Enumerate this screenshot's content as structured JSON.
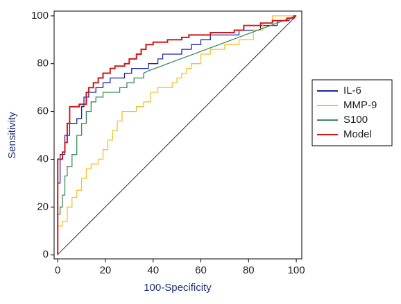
{
  "chart_data": {
    "type": "roc",
    "x_label": "100-Specificity",
    "y_label": "Sensitivity",
    "xlim": [
      -1.5,
      102.3
    ],
    "ylim": [
      -1.7,
      102
    ],
    "xticks": [
      0,
      20,
      40,
      60,
      80,
      100
    ],
    "yticks": [
      0,
      20,
      40,
      60,
      80,
      100
    ],
    "series": [
      {
        "name": "IL-6",
        "color": "#1a22b0",
        "x": [
          0,
          0,
          1,
          1,
          3,
          3,
          5,
          5,
          8,
          8,
          10,
          10,
          11,
          11,
          13,
          13,
          16,
          16,
          19,
          19,
          22,
          22,
          28,
          28,
          31,
          31,
          38,
          38,
          42,
          42,
          44,
          44,
          52,
          52,
          56,
          56,
          60,
          60,
          64,
          64,
          76,
          76,
          85,
          85,
          92,
          92,
          97,
          97,
          100
        ],
        "values": [
          0,
          30,
          30,
          42,
          42,
          50,
          50,
          55,
          55,
          57,
          57,
          62,
          62,
          66,
          66,
          68,
          68,
          70,
          70,
          72,
          72,
          74,
          74,
          76,
          76,
          78,
          78,
          80,
          80,
          82,
          82,
          84,
          84,
          86,
          86,
          88,
          88,
          90,
          90,
          92,
          92,
          94,
          94,
          96,
          96,
          98,
          98,
          99,
          100
        ]
      },
      {
        "name": "MMP-9",
        "color": "#f2c12e",
        "x": [
          0,
          0,
          2,
          2,
          4,
          4,
          6,
          6,
          8,
          8,
          10,
          10,
          12,
          12,
          14,
          14,
          17,
          17,
          19,
          19,
          21,
          21,
          23,
          23,
          25,
          25,
          27,
          27,
          33,
          33,
          36,
          36,
          39,
          39,
          42,
          42,
          48,
          48,
          50,
          50,
          52,
          52,
          54,
          54,
          56,
          56,
          60,
          60,
          64,
          64,
          70,
          70,
          76,
          76,
          82,
          82,
          86,
          86,
          90,
          90,
          100
        ],
        "values": [
          0,
          12,
          12,
          14,
          14,
          20,
          20,
          24,
          24,
          27,
          27,
          32,
          32,
          36,
          36,
          38,
          38,
          40,
          40,
          44,
          44,
          48,
          48,
          52,
          52,
          56,
          56,
          60,
          60,
          62,
          62,
          64,
          64,
          68,
          68,
          70,
          70,
          72,
          72,
          74,
          74,
          76,
          76,
          78,
          78,
          80,
          80,
          84,
          84,
          86,
          86,
          88,
          88,
          90,
          90,
          94,
          94,
          97,
          97,
          100,
          100
        ]
      },
      {
        "name": "S100",
        "color": "#3a8a5c",
        "x": [
          0,
          0,
          1,
          1,
          2,
          2,
          3,
          3,
          4,
          4,
          6,
          6,
          8,
          8,
          10,
          10,
          12,
          12,
          14,
          14,
          16,
          16,
          19,
          19,
          26,
          26,
          29,
          29,
          32,
          32,
          36,
          36,
          38,
          100
        ],
        "values": [
          0,
          17,
          17,
          20,
          20,
          25,
          25,
          33,
          33,
          37,
          37,
          42,
          42,
          50,
          50,
          55,
          55,
          60,
          60,
          64,
          64,
          66,
          66,
          68,
          68,
          70,
          70,
          72,
          72,
          74,
          74,
          76,
          77,
          100
        ]
      },
      {
        "name": "Model",
        "color": "#d01818",
        "x": [
          0,
          0,
          2,
          2,
          3,
          3,
          4,
          4,
          5,
          5,
          9,
          9,
          12,
          12,
          13,
          13,
          15,
          15,
          17,
          17,
          19,
          19,
          22,
          22,
          24,
          24,
          28,
          28,
          30,
          30,
          33,
          33,
          35,
          35,
          37,
          37,
          40,
          40,
          46,
          46,
          52,
          52,
          55,
          55,
          64,
          64,
          74,
          74,
          78,
          78,
          85,
          85,
          90,
          90,
          96,
          96,
          99,
          99,
          100
        ],
        "values": [
          0,
          40,
          40,
          43,
          43,
          47,
          47,
          55,
          55,
          62,
          62,
          63,
          63,
          68,
          68,
          70,
          70,
          72,
          72,
          74,
          74,
          76,
          76,
          78,
          78,
          79,
          79,
          80,
          80,
          82,
          82,
          84,
          84,
          86,
          86,
          88,
          88,
          89,
          89,
          90,
          90,
          91,
          91,
          92,
          92,
          93,
          93,
          94,
          94,
          96,
          96,
          97,
          97,
          98,
          98,
          99,
          99,
          100,
          100
        ]
      }
    ]
  }
}
